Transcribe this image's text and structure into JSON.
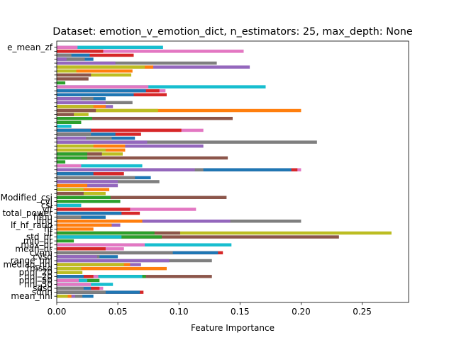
{
  "chart_data": {
    "type": "bar",
    "orientation": "horizontal",
    "stacked": false,
    "title": "Dataset: emotion_v_emotion_dict, n_estimators: 25, max_depth: None",
    "xlabel": "Feature Importance",
    "ylabel": "",
    "xlim": [
      0,
      0.288
    ],
    "xticks": [
      0.0,
      0.05,
      0.1,
      0.15,
      0.2,
      0.25
    ],
    "xtick_labels": [
      "0.00",
      "0.05",
      "0.10",
      "0.15",
      "0.20",
      "0.25"
    ],
    "grid": false,
    "legend": "none",
    "colors": [
      "#1f77b4",
      "#ff7f0e",
      "#2ca02c",
      "#d62728",
      "#9467bd",
      "#8c564b",
      "#e377c2",
      "#7f7f7f",
      "#bcbd22",
      "#17becf"
    ],
    "visible_features": [
      "mean_nni",
      "sdnn",
      "sdsd",
      "nni_50",
      "pnni_50",
      "nni_20",
      "pnni_20",
      "rmssd",
      "median_nni",
      "range_nni",
      "cvsd",
      "cvnni",
      "mean_hr",
      "max_hr",
      "min_hr",
      "std_hr",
      "lf",
      "hf",
      "lf_hf_ratio",
      "lfnu",
      "hfnu",
      "total_power",
      "vlf",
      "csi",
      "cvi",
      "Modified_csi",
      "e_mean_zf"
    ],
    "rows": [
      {
        "label": "mean_nni",
        "values": [
          0.009,
          0.012,
          0.015,
          0.021,
          0.03
        ]
      },
      {
        "label": "sdnn",
        "values": [
          0.04,
          0.068,
          0.071
        ]
      },
      {
        "label": "sdsd",
        "values": [
          0.022,
          0.028,
          0.035,
          0.038
        ]
      },
      {
        "label": "nni_50",
        "values": [
          0.028,
          0.046
        ]
      },
      {
        "label": "pnni_50",
        "values": [
          0.018,
          0.025,
          0.035
        ]
      },
      {
        "label": "nni_20",
        "values": [
          0.022,
          0.03,
          0.034,
          0.07,
          0.073,
          0.127
        ]
      },
      {
        "label": "pnni_20",
        "values": [
          0.021
        ]
      },
      {
        "label": "rmssd",
        "values": [
          0.02,
          0.09
        ]
      },
      {
        "label": "median_nni",
        "values": [
          0.055,
          0.06,
          0.069
        ]
      },
      {
        "label": "range_nni",
        "values": [
          0.092,
          0.127
        ]
      },
      {
        "label": "cvsd",
        "values": [
          0.033,
          0.035,
          0.05
        ]
      },
      {
        "label": "cvnni",
        "values": [
          0.095,
          0.132,
          0.136
        ]
      },
      {
        "label": "mean_hr",
        "values": [
          0.04,
          0.055
        ]
      },
      {
        "label": "max_hr",
        "values": [
          0.072,
          0.143
        ]
      },
      {
        "label": "min_hr",
        "values": [
          0.014
        ]
      },
      {
        "label": "std_hr",
        "values": [
          0.053,
          0.086,
          0.231
        ]
      },
      {
        "label": "lf",
        "values": [
          0.08,
          0.101,
          0.274
        ]
      },
      {
        "label": "hf",
        "values": [
          0.03
        ]
      },
      {
        "label": "lf_hf_ratio",
        "values": [
          0.045,
          0.052
        ]
      },
      {
        "label": "lfnu",
        "values": [
          0.07,
          0.142,
          0.2
        ]
      },
      {
        "label": "hfnu",
        "values": [
          0.02,
          0.04
        ]
      },
      {
        "label": "total_power",
        "values": [
          0.053,
          0.068
        ]
      },
      {
        "label": "vlf",
        "values": [
          0.06,
          0.114
        ]
      },
      {
        "label": "csi",
        "values": [
          0.02
        ]
      },
      {
        "label": "cvi",
        "values": [
          0.052
        ]
      },
      {
        "label": "Modified_csi",
        "values": [
          0.044,
          0.139
        ]
      },
      {
        "label": "",
        "values": [
          0.022,
          0.04
        ]
      },
      {
        "label": "",
        "values": [
          0.022,
          0.043
        ]
      },
      {
        "label": "",
        "values": [
          0.025,
          0.05
        ]
      },
      {
        "label": "",
        "values": [
          0.05,
          0.084
        ]
      },
      {
        "label": "",
        "values": [
          0.064,
          0.077
        ]
      },
      {
        "label": "",
        "values": [
          0.03,
          0.055
        ]
      },
      {
        "label": "",
        "values": [
          0.113,
          0.12,
          0.192,
          0.197,
          0.2
        ]
      },
      {
        "label": "",
        "values": [
          0.02,
          0.07
        ]
      },
      {
        "label": "",
        "values": [
          0.007
        ]
      },
      {
        "label": "",
        "values": [
          0.025,
          0.14
        ]
      },
      {
        "label": "",
        "values": [
          0.025,
          0.037,
          0.054
        ]
      },
      {
        "label": "",
        "values": [
          0.04,
          0.056
        ]
      },
      {
        "label": "",
        "values": [
          0.03,
          0.056,
          0.12
        ]
      },
      {
        "label": "",
        "values": [
          0.074,
          0.213
        ]
      },
      {
        "label": "",
        "values": [
          0.024,
          0.045,
          0.064
        ]
      },
      {
        "label": "",
        "values": [
          0.028,
          0.048,
          0.069
        ]
      },
      {
        "label": "",
        "values": [
          0.028,
          0.102,
          0.12
        ]
      },
      {
        "label": "",
        "values": [
          0.012
        ]
      },
      {
        "label": "",
        "values": [
          0.02
        ]
      },
      {
        "label": "",
        "values": [
          0.029,
          0.144
        ]
      },
      {
        "label": "",
        "values": [
          0.014,
          0.026
        ]
      },
      {
        "label": "",
        "values": [
          0.032,
          0.083,
          0.2
        ]
      },
      {
        "label": "",
        "values": [
          0.03,
          0.04,
          0.046
        ]
      },
      {
        "label": "",
        "values": [
          0.04,
          0.062
        ]
      },
      {
        "label": "",
        "values": [
          0.02,
          0.03,
          0.04
        ]
      },
      {
        "label": "",
        "values": [
          0.063,
          0.09
        ]
      },
      {
        "label": "",
        "values": [
          0.073,
          0.084,
          0.089
        ]
      },
      {
        "label": "",
        "values": [
          0.075,
          0.171
        ]
      },
      {
        "label": "",
        "values": [
          0.007
        ]
      },
      {
        "label": "",
        "values": [
          0.026
        ]
      },
      {
        "label": "",
        "values": [
          0.028,
          0.061
        ]
      },
      {
        "label": "",
        "values": [
          0.016,
          0.062
        ]
      },
      {
        "label": "",
        "values": [
          0.072,
          0.079,
          0.158
        ]
      },
      {
        "label": "",
        "values": [
          0.048,
          0.131
        ]
      },
      {
        "label": "",
        "values": [
          0.008,
          0.023,
          0.03
        ]
      },
      {
        "label": "",
        "values": [
          0.012,
          0.027,
          0.063
        ]
      },
      {
        "label": "",
        "values": [
          0.038,
          0.153
        ]
      },
      {
        "label": "e_mean_zf",
        "values": [
          0.017,
          0.087
        ]
      }
    ]
  }
}
